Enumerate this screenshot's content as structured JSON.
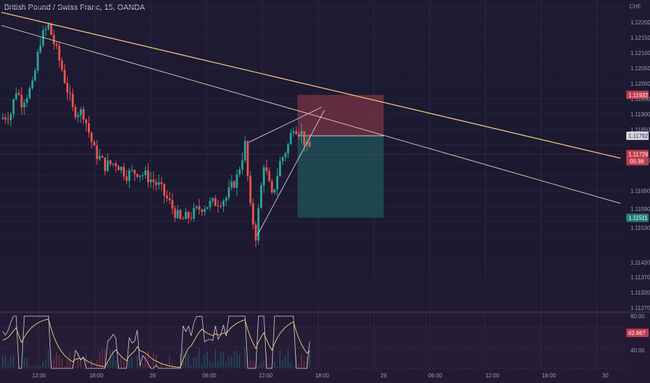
{
  "title": "British Pound / Swiss Franc, 15, OANDA",
  "currency_label": "CHF",
  "colors": {
    "up": "#26a69a",
    "down": "#ef5350",
    "trendline": "#f0c77a",
    "channel": "#d9d4e6",
    "stop_zone": "#9c3d4d",
    "target_zone": "#1f6b6a",
    "price_line": "#c23c4e"
  },
  "chart_data": [
    {
      "type": "candlestick",
      "ylim": [
        1.1125,
        1.1225
      ],
      "y_ticks": [
        "1.12200",
        "1.12150",
        "1.12100",
        "1.12050",
        "1.12000",
        "1.11950",
        "1.11900",
        "1.11850",
        "1.11750",
        "1.11650",
        "1.11590",
        "1.11530",
        "1.11420",
        "1.11370",
        "1.11320",
        "1.11270"
      ],
      "x_ticks": [
        "12:00",
        "18:00",
        "26",
        "06:00",
        "12:00",
        "18:00",
        "29",
        "06:00",
        "12:00",
        "18:00",
        "30"
      ],
      "price_badges": [
        {
          "label": "1.11932",
          "value": 1.11932,
          "kind": "stop"
        },
        {
          "label": "1.11792",
          "value": 1.11792,
          "kind": "entry"
        },
        {
          "label": "1.11729",
          "value": 1.11729,
          "kind": "current",
          "sub": "05:38"
        },
        {
          "label": "1.11511",
          "value": 1.11511,
          "kind": "target"
        }
      ],
      "candle_count": 115,
      "trend": [
        {
          "t": 0,
          "v": 1.1185
        },
        {
          "t": 4,
          "v": 1.1187
        },
        {
          "t": 6,
          "v": 1.1195
        },
        {
          "t": 8,
          "v": 1.1191
        },
        {
          "t": 12,
          "v": 1.1196
        },
        {
          "t": 15,
          "v": 1.1212
        },
        {
          "t": 18,
          "v": 1.1217
        },
        {
          "t": 20,
          "v": 1.1211
        },
        {
          "t": 23,
          "v": 1.1202
        },
        {
          "t": 27,
          "v": 1.1188
        },
        {
          "t": 31,
          "v": 1.1187
        },
        {
          "t": 35,
          "v": 1.1174
        },
        {
          "t": 39,
          "v": 1.1169
        },
        {
          "t": 43,
          "v": 1.117
        },
        {
          "t": 47,
          "v": 1.1166
        },
        {
          "t": 51,
          "v": 1.1167
        },
        {
          "t": 55,
          "v": 1.1165
        },
        {
          "t": 59,
          "v": 1.1162
        },
        {
          "t": 63,
          "v": 1.1156
        },
        {
          "t": 67,
          "v": 1.115
        },
        {
          "t": 71,
          "v": 1.1152
        },
        {
          "t": 75,
          "v": 1.1155
        },
        {
          "t": 79,
          "v": 1.1156
        },
        {
          "t": 84,
          "v": 1.1158
        },
        {
          "t": 88,
          "v": 1.1165
        },
        {
          "t": 91,
          "v": 1.1176
        },
        {
          "t": 93,
          "v": 1.1154
        },
        {
          "t": 95,
          "v": 1.1145
        },
        {
          "t": 98,
          "v": 1.117
        },
        {
          "t": 101,
          "v": 1.1158
        },
        {
          "t": 104,
          "v": 1.117
        },
        {
          "t": 107,
          "v": 1.1176
        },
        {
          "t": 109,
          "v": 1.1183
        },
        {
          "t": 112,
          "v": 1.118
        },
        {
          "t": 114,
          "v": 1.1175
        }
      ],
      "drawings": {
        "trendline_upper": [
          {
            "t": 0,
            "v": 1.12215
          },
          {
            "t": 230,
            "v": 1.11715
          }
        ],
        "trendline_lower": [
          {
            "t": 0,
            "v": 1.1217
          },
          {
            "t": 230,
            "v": 1.1156
          }
        ],
        "channel_top": [
          {
            "t": 92,
            "v": 1.1177
          },
          {
            "t": 119,
            "v": 1.1189
          }
        ],
        "channel_bottom": [
          {
            "t": 95,
            "v": 1.1145
          },
          {
            "t": 120,
            "v": 1.1188
          }
        ],
        "position": {
          "t_start": 110,
          "t_end": 142,
          "stop": 1.11932,
          "entry": 1.11792,
          "target": 1.11511
        }
      }
    },
    {
      "type": "line",
      "ylim": [
        25,
        90
      ],
      "y_ticks": [
        "80.00",
        "40.00"
      ],
      "value_badge": "62.667",
      "levels": [
        80,
        70,
        50,
        30
      ]
    }
  ]
}
